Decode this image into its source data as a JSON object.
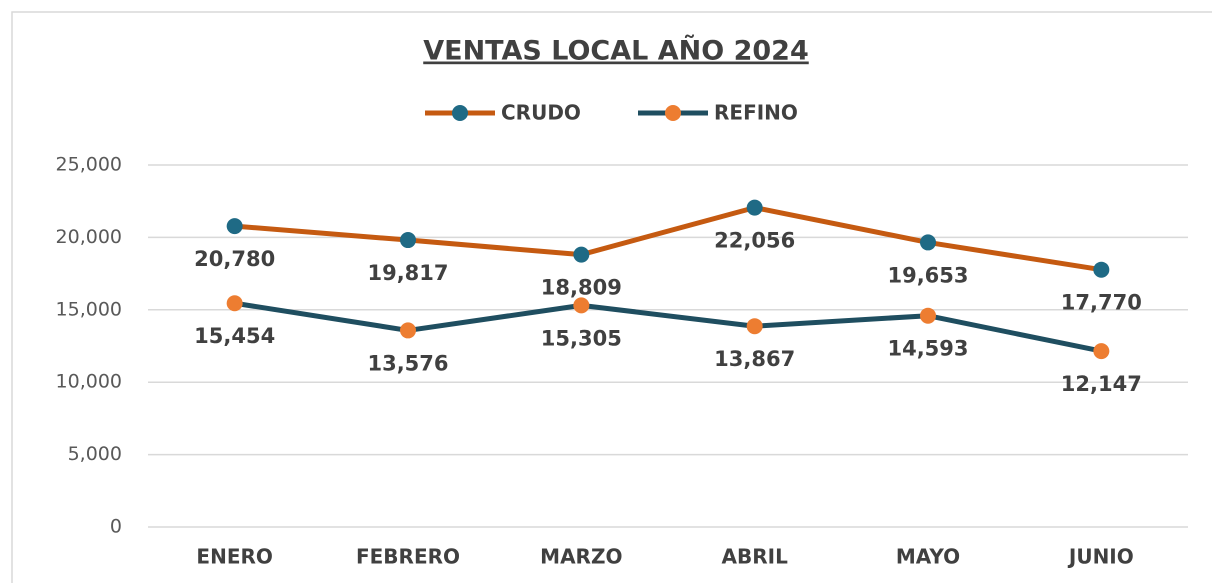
{
  "chart_data": {
    "type": "line",
    "title": "VENTAS LOCAL AÑO 2024",
    "categories": [
      "ENERO",
      "FEBRERO",
      "MARZO",
      "ABRIL",
      "MAYO",
      "JUNIO"
    ],
    "series": [
      {
        "name": "CRUDO",
        "color": "#c55a11",
        "marker_color": "#1f6a85",
        "values": [
          20780,
          19817,
          18809,
          22056,
          19653,
          17770
        ],
        "value_labels": [
          "20,780",
          "19,817",
          "18,809",
          "22,056",
          "19,653",
          "17,770"
        ]
      },
      {
        "name": "REFINO",
        "color": "#1f4e60",
        "marker_color": "#ed7d31",
        "values": [
          15454,
          13576,
          15305,
          13867,
          14593,
          12147
        ],
        "value_labels": [
          "15,454",
          "13,576",
          "15,305",
          "13,867",
          "14,593",
          "12,147"
        ]
      }
    ],
    "ylim": [
      0,
      25000
    ],
    "yticks": [
      0,
      {
        "value": 5000,
        "label": "5,000"
      },
      {
        "value": 10000,
        "label": "10,000"
      },
      {
        "value": 15000,
        "label": "15,000"
      },
      {
        "value": 20000,
        "label": "20,000"
      },
      {
        "value": 25000,
        "label": "25,000"
      }
    ],
    "grid": true,
    "legend": "top"
  }
}
